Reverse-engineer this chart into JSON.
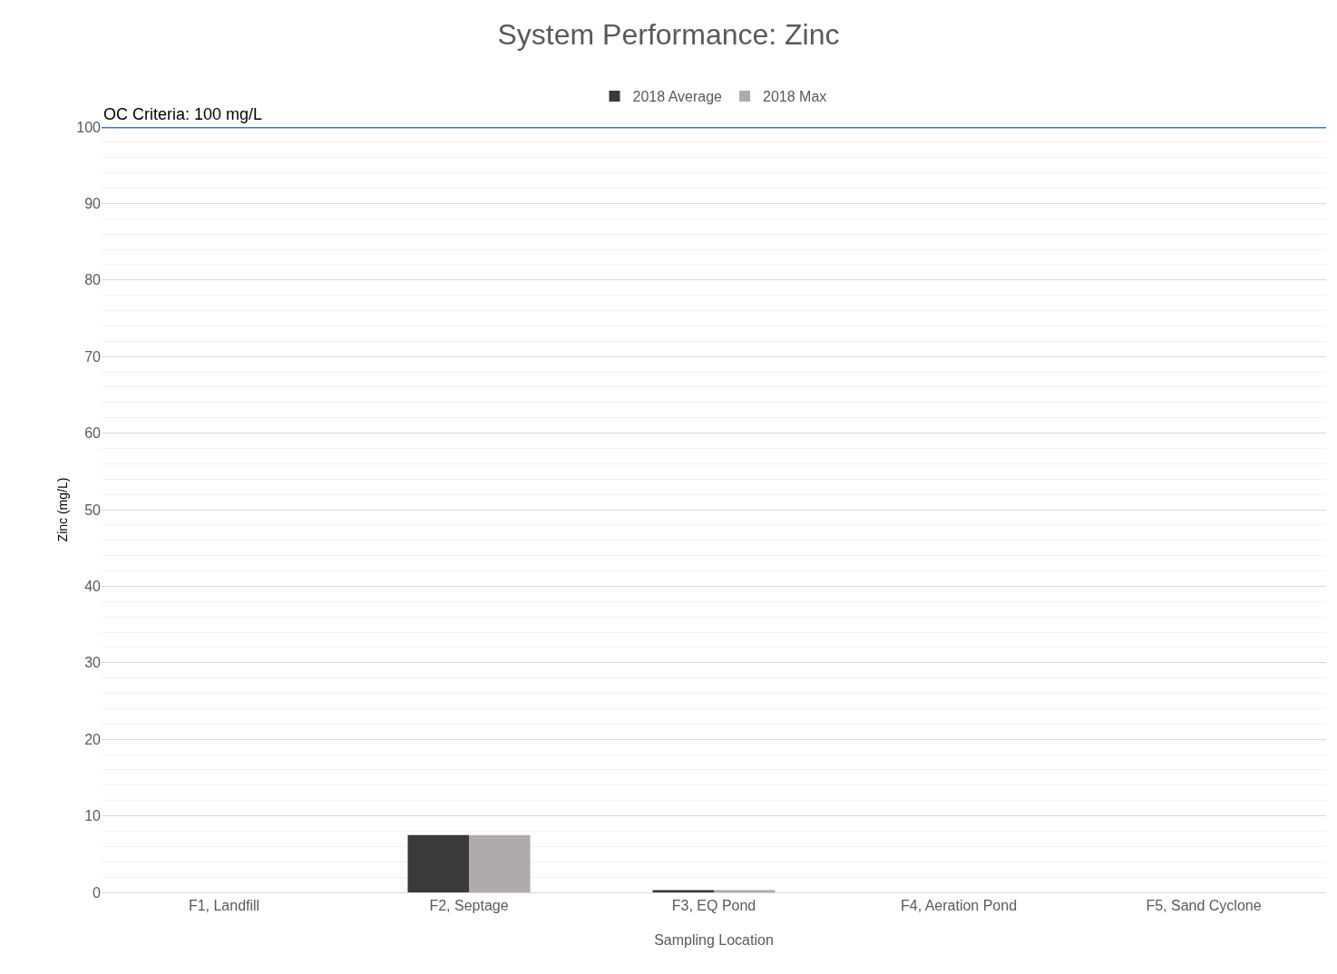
{
  "chart_data": {
    "type": "bar",
    "title": "System Performance: Zinc",
    "xlabel": "Sampling Location",
    "ylabel": "Zinc (mg/L)",
    "categories": [
      "F1, Landfill",
      "F2, Septage",
      "F3, EQ Pond",
      "F4, Aeration Pond",
      "F5, Sand Cyclone"
    ],
    "series": [
      {
        "name": "2018 Average",
        "color": "#3b3a38",
        "values": [
          null,
          7.5,
          0.3,
          null,
          null
        ]
      },
      {
        "name": "2018 Max",
        "color": "#afabaa",
        "values": [
          null,
          7.5,
          0.3,
          null,
          null
        ]
      }
    ],
    "ylim": [
      0,
      100
    ],
    "yticks": [
      0,
      10,
      20,
      30,
      40,
      50,
      60,
      70,
      80,
      90,
      100
    ],
    "grid": "y",
    "legend": "top",
    "ref_lines": [
      {
        "axis": "y",
        "value": 100,
        "label": "OC Criteria: 100 mg/L",
        "color": "#4472c4"
      }
    ]
  }
}
